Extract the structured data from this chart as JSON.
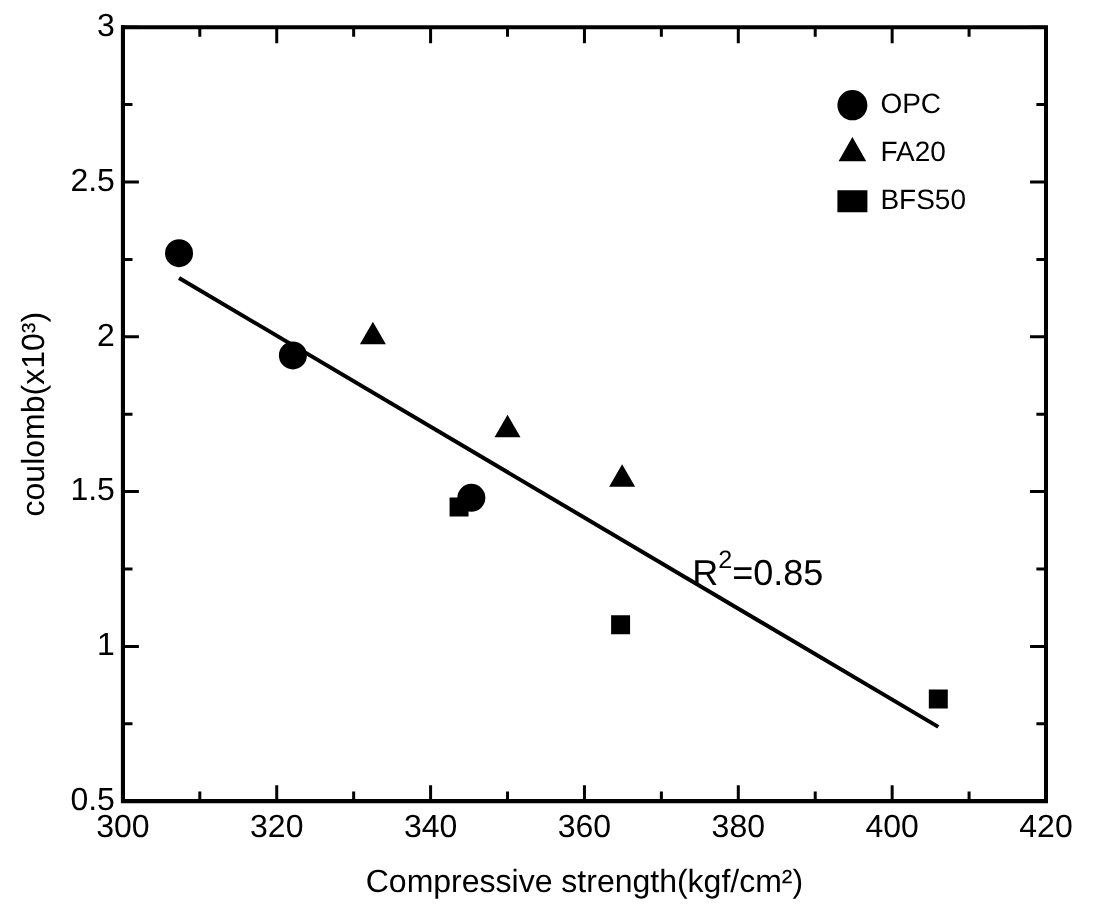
{
  "chart_data": {
    "type": "scatter",
    "xlabel": "Compressive strength(kgf/cm²)",
    "ylabel": "coulomb(x10³)",
    "xlim": [
      300,
      420
    ],
    "xticks": [
      300,
      {
        "value": 310,
        "label": null
      },
      320,
      {
        "value": 330,
        "label": null
      },
      340,
      {
        "value": 350,
        "label": null
      },
      360,
      {
        "value": 370,
        "label": null
      },
      380,
      {
        "value": 390,
        "label": null
      },
      400,
      {
        "value": 410,
        "label": null
      },
      420
    ],
    "ylim": [
      0.5,
      3
    ],
    "yticks": [
      0.5,
      {
        "value": 0.75,
        "label": null
      },
      1,
      {
        "value": 1.25,
        "label": null
      },
      1.5,
      {
        "value": 1.75,
        "label": null
      },
      2,
      {
        "value": 2.25,
        "label": null
      },
      2.5,
      {
        "value": 2.75,
        "label": null
      },
      3
    ],
    "series": [
      {
        "name": "OPC",
        "color": "#000000",
        "marker": "circle",
        "x": [
          307.3,
          322.1,
          345.3
        ],
        "values": [
          2.27,
          1.94,
          1.48
        ]
      },
      {
        "name": "FA20",
        "color": "#000000",
        "marker": "triangle",
        "x": [
          332.5,
          350,
          364.9
        ],
        "values": [
          2.0,
          1.7,
          1.54
        ]
      },
      {
        "name": "BFS50",
        "color": "#000000",
        "marker": "square",
        "x": [
          343.7,
          364.7,
          406
        ],
        "values": [
          1.45,
          1.07,
          0.83
        ]
      },
      {
        "type": "line",
        "color": "#000000",
        "marker": "none",
        "x": [
          307.3,
          406
        ],
        "values": [
          2.19,
          0.74
        ]
      }
    ],
    "annotations": [
      {
        "text": "R$^{2}$=0.85",
        "x": 374,
        "y": 1.23
      }
    ],
    "legend": "top right",
    "grid": false
  }
}
